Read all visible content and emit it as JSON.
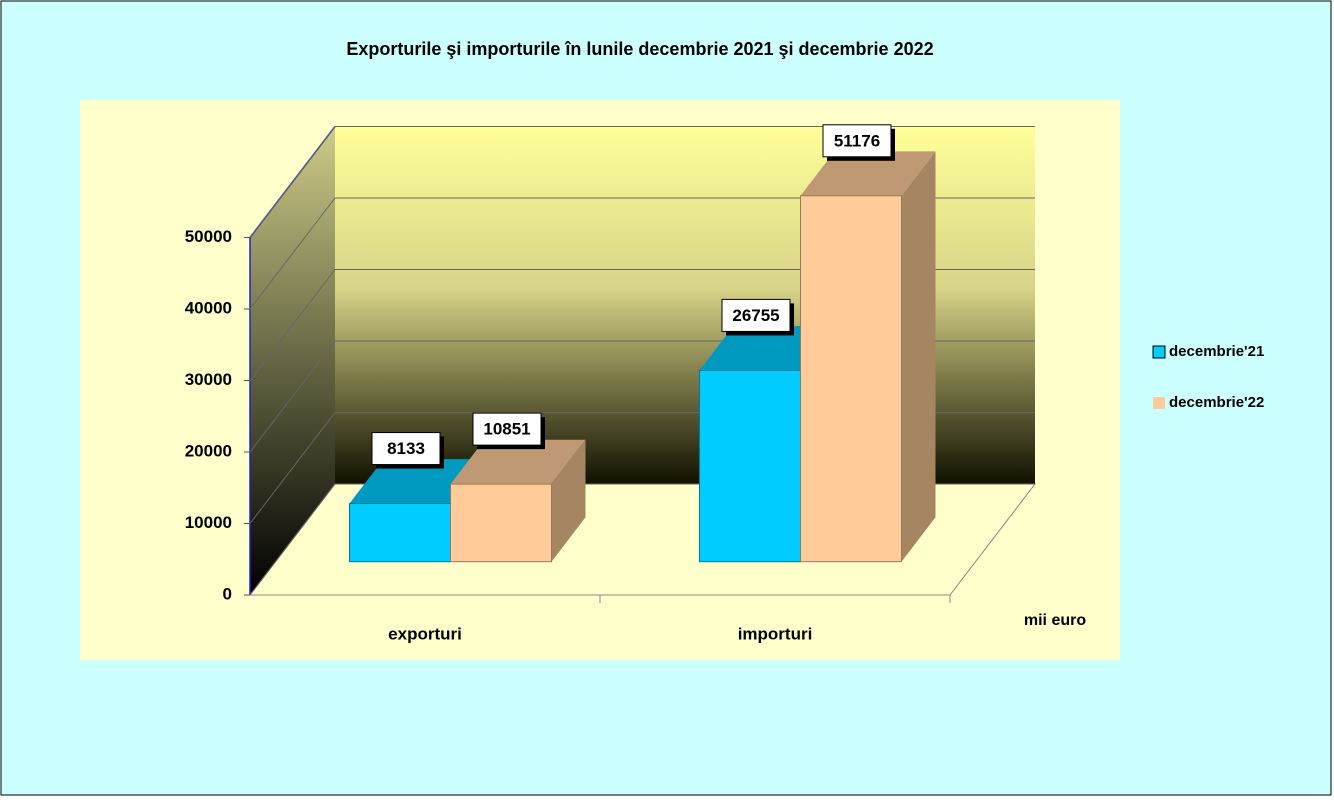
{
  "chart_data": {
    "type": "bar",
    "title": "Exporturile şi importurile în lunile decembrie 2021 şi decembrie 2022",
    "categories": [
      "exporturi",
      "importuri"
    ],
    "series": [
      {
        "name": "decembrie'21",
        "color": "#00ccff",
        "values": [
          8133,
          26755
        ]
      },
      {
        "name": "decembrie'22",
        "color": "#ffcc99",
        "values": [
          10851,
          51176
        ]
      }
    ],
    "ylim": [
      0,
      50000
    ],
    "yticks": [
      0,
      10000,
      20000,
      30000,
      40000,
      50000
    ],
    "grid": true,
    "legend": "right",
    "unit_label": "mii euro"
  }
}
